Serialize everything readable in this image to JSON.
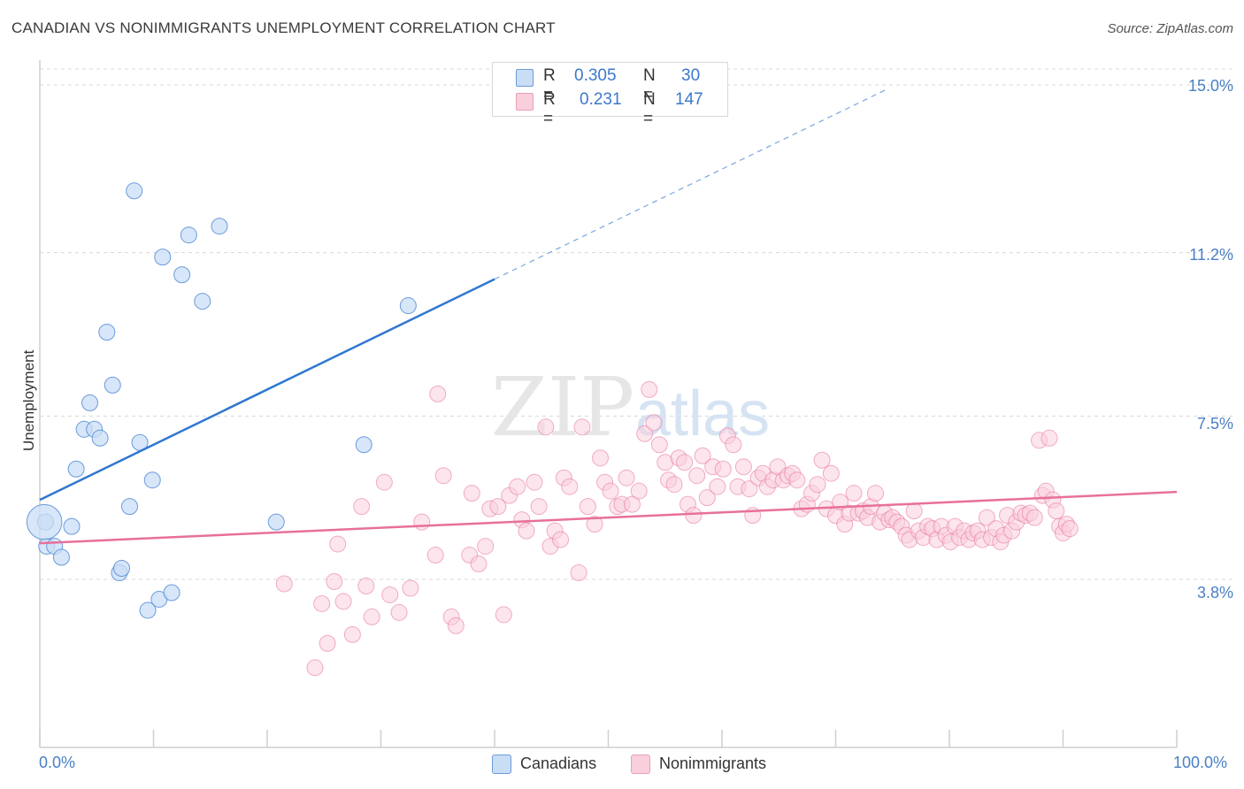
{
  "title": "CANADIAN VS NONIMMIGRANTS UNEMPLOYMENT CORRELATION CHART",
  "source": "Source: ZipAtlas.com",
  "watermark": {
    "zip": "ZIP",
    "atlas": "atlas"
  },
  "colors": {
    "blue": "#4a86d4",
    "blue_fill": "#c9ddf5",
    "pink": "#e8709a",
    "pink_fill": "#f9cfdc",
    "grid": "#d8d8d8"
  },
  "legend": {
    "rows": [
      {
        "r_label": "R = ",
        "r_value": "0.305",
        "n_label": "N = ",
        "n_value": "30"
      },
      {
        "r_label": "R = ",
        "r_value": "0.231",
        "n_label": "N = ",
        "n_value": "147"
      }
    ]
  },
  "bottom_legend": {
    "canadians": "Canadians",
    "nonimmigrants": "Nonimmigrants"
  },
  "chart_data": {
    "type": "scatter",
    "title": "CANADIAN VS NONIMMIGRANTS UNEMPLOYMENT CORRELATION CHART",
    "xlabel": "",
    "ylabel": "Unemployment",
    "xlim": [
      0,
      100
    ],
    "ylim": [
      0,
      15.5
    ],
    "y_ticks": [
      {
        "v": 3.8,
        "label": "3.8%"
      },
      {
        "v": 7.5,
        "label": "7.5%"
      },
      {
        "v": 11.2,
        "label": "11.2%"
      },
      {
        "v": 15.0,
        "label": "15.0%"
      }
    ],
    "x_ticks": [
      {
        "v": 0,
        "label": "0.0%"
      },
      {
        "v": 100,
        "label": "100.0%"
      }
    ],
    "grid": true,
    "series": [
      {
        "name": "Canadians",
        "r": 0.305,
        "n": 30,
        "trend": {
          "x0": 0,
          "y0": 5.6,
          "x1": 40,
          "y1": 10.6,
          "dash_to_x": 74.5,
          "dash_to_y": 14.9
        },
        "points": [
          [
            0.5,
            5.1
          ],
          [
            0.6,
            4.55
          ],
          [
            1.3,
            4.55
          ],
          [
            1.9,
            4.3
          ],
          [
            2.8,
            5.0
          ],
          [
            3.2,
            6.3
          ],
          [
            3.9,
            7.2
          ],
          [
            4.4,
            7.8
          ],
          [
            4.8,
            7.2
          ],
          [
            5.3,
            7.0
          ],
          [
            5.9,
            9.4
          ],
          [
            6.4,
            8.2
          ],
          [
            7.0,
            3.95
          ],
          [
            7.2,
            4.05
          ],
          [
            7.9,
            5.45
          ],
          [
            8.3,
            12.6
          ],
          [
            8.8,
            6.9
          ],
          [
            9.5,
            3.1
          ],
          [
            9.9,
            6.05
          ],
          [
            10.5,
            3.35
          ],
          [
            10.8,
            11.1
          ],
          [
            11.6,
            3.5
          ],
          [
            12.5,
            10.7
          ],
          [
            13.1,
            11.6
          ],
          [
            14.3,
            10.1
          ],
          [
            15.8,
            11.8
          ],
          [
            20.8,
            5.1
          ],
          [
            28.5,
            6.85
          ],
          [
            32.4,
            10.0
          ],
          [
            0.4,
            5.1
          ]
        ],
        "sizes": [
          1,
          1,
          1,
          1,
          1,
          1,
          1,
          1,
          1,
          1,
          1,
          1,
          1,
          1,
          1,
          1,
          1,
          1,
          1,
          1,
          1,
          1,
          1,
          1,
          1,
          1,
          1,
          1,
          1,
          2.2
        ]
      },
      {
        "name": "Nonimmigrants",
        "r": 0.231,
        "n": 147,
        "trend": {
          "x0": 0,
          "y0": 4.62,
          "x1": 100,
          "y1": 5.78
        },
        "points": [
          [
            21.5,
            3.7
          ],
          [
            24.2,
            1.8
          ],
          [
            24.8,
            3.25
          ],
          [
            25.3,
            2.35
          ],
          [
            25.9,
            3.75
          ],
          [
            26.2,
            4.6
          ],
          [
            26.7,
            3.3
          ],
          [
            27.5,
            2.55
          ],
          [
            28.3,
            5.45
          ],
          [
            28.7,
            3.65
          ],
          [
            29.2,
            2.95
          ],
          [
            30.3,
            6.0
          ],
          [
            30.8,
            3.45
          ],
          [
            31.6,
            3.05
          ],
          [
            32.6,
            3.6
          ],
          [
            33.6,
            5.1
          ],
          [
            34.8,
            4.35
          ],
          [
            35.0,
            8.0
          ],
          [
            35.5,
            6.15
          ],
          [
            36.2,
            2.95
          ],
          [
            36.6,
            2.75
          ],
          [
            37.8,
            4.35
          ],
          [
            38.0,
            5.75
          ],
          [
            38.6,
            4.15
          ],
          [
            39.2,
            4.55
          ],
          [
            39.6,
            5.4
          ],
          [
            40.3,
            5.45
          ],
          [
            40.8,
            3.0
          ],
          [
            41.3,
            5.7
          ],
          [
            42.0,
            5.9
          ],
          [
            42.4,
            5.15
          ],
          [
            42.8,
            4.9
          ],
          [
            43.5,
            6.0
          ],
          [
            43.9,
            5.45
          ],
          [
            44.5,
            7.25
          ],
          [
            44.9,
            4.55
          ],
          [
            45.3,
            4.9
          ],
          [
            45.8,
            4.7
          ],
          [
            46.1,
            6.1
          ],
          [
            46.6,
            5.9
          ],
          [
            47.4,
            3.95
          ],
          [
            47.7,
            7.25
          ],
          [
            48.2,
            5.45
          ],
          [
            48.8,
            5.05
          ],
          [
            49.3,
            6.55
          ],
          [
            49.7,
            6.0
          ],
          [
            50.2,
            5.8
          ],
          [
            50.8,
            5.45
          ],
          [
            51.2,
            5.5
          ],
          [
            51.6,
            6.1
          ],
          [
            52.1,
            5.5
          ],
          [
            52.7,
            5.8
          ],
          [
            53.2,
            7.1
          ],
          [
            53.6,
            8.1
          ],
          [
            54.0,
            7.35
          ],
          [
            54.5,
            6.85
          ],
          [
            55.0,
            6.45
          ],
          [
            55.3,
            6.05
          ],
          [
            55.8,
            5.95
          ],
          [
            56.2,
            6.55
          ],
          [
            56.7,
            6.45
          ],
          [
            57.0,
            5.5
          ],
          [
            57.5,
            5.25
          ],
          [
            57.8,
            6.15
          ],
          [
            58.3,
            6.6
          ],
          [
            58.7,
            5.65
          ],
          [
            59.2,
            6.35
          ],
          [
            59.6,
            5.9
          ],
          [
            60.1,
            6.3
          ],
          [
            60.5,
            7.05
          ],
          [
            61.0,
            6.85
          ],
          [
            61.4,
            5.9
          ],
          [
            61.9,
            6.35
          ],
          [
            62.4,
            5.85
          ],
          [
            62.7,
            5.25
          ],
          [
            63.2,
            6.1
          ],
          [
            63.6,
            6.2
          ],
          [
            64.0,
            5.9
          ],
          [
            64.5,
            6.05
          ],
          [
            64.9,
            6.35
          ],
          [
            65.4,
            6.05
          ],
          [
            65.8,
            6.15
          ],
          [
            66.2,
            6.2
          ],
          [
            66.6,
            6.05
          ],
          [
            67.0,
            5.4
          ],
          [
            67.5,
            5.5
          ],
          [
            67.9,
            5.75
          ],
          [
            68.4,
            5.95
          ],
          [
            68.8,
            6.5
          ],
          [
            69.2,
            5.4
          ],
          [
            69.6,
            6.2
          ],
          [
            70.0,
            5.25
          ],
          [
            70.4,
            5.55
          ],
          [
            70.8,
            5.05
          ],
          [
            71.2,
            5.3
          ],
          [
            71.6,
            5.75
          ],
          [
            72.0,
            5.3
          ],
          [
            72.4,
            5.35
          ],
          [
            72.8,
            5.2
          ],
          [
            73.1,
            5.45
          ],
          [
            73.5,
            5.75
          ],
          [
            73.9,
            5.1
          ],
          [
            74.3,
            5.3
          ],
          [
            74.7,
            5.15
          ],
          [
            75.0,
            5.2
          ],
          [
            75.4,
            5.1
          ],
          [
            75.8,
            5.0
          ],
          [
            76.2,
            4.8
          ],
          [
            76.5,
            4.7
          ],
          [
            76.9,
            5.35
          ],
          [
            77.3,
            4.9
          ],
          [
            77.7,
            4.75
          ],
          [
            78.1,
            5.0
          ],
          [
            78.5,
            4.95
          ],
          [
            78.9,
            4.7
          ],
          [
            79.3,
            5.0
          ],
          [
            79.7,
            4.8
          ],
          [
            80.1,
            4.65
          ],
          [
            80.5,
            5.0
          ],
          [
            80.9,
            4.75
          ],
          [
            81.3,
            4.9
          ],
          [
            81.7,
            4.7
          ],
          [
            82.1,
            4.85
          ],
          [
            82.5,
            4.9
          ],
          [
            82.9,
            4.7
          ],
          [
            83.3,
            5.2
          ],
          [
            83.7,
            4.75
          ],
          [
            84.1,
            4.95
          ],
          [
            84.5,
            4.65
          ],
          [
            84.8,
            4.8
          ],
          [
            85.1,
            5.25
          ],
          [
            85.5,
            4.9
          ],
          [
            85.9,
            5.1
          ],
          [
            86.3,
            5.3
          ],
          [
            86.7,
            5.25
          ],
          [
            87.1,
            5.3
          ],
          [
            87.5,
            5.2
          ],
          [
            87.9,
            6.95
          ],
          [
            88.2,
            5.7
          ],
          [
            88.5,
            5.8
          ],
          [
            88.8,
            7.0
          ],
          [
            89.1,
            5.6
          ],
          [
            89.4,
            5.35
          ],
          [
            89.7,
            5.0
          ],
          [
            90.0,
            4.85
          ],
          [
            90.3,
            5.05
          ],
          [
            90.6,
            4.95
          ]
        ],
        "sizes": []
      }
    ]
  }
}
